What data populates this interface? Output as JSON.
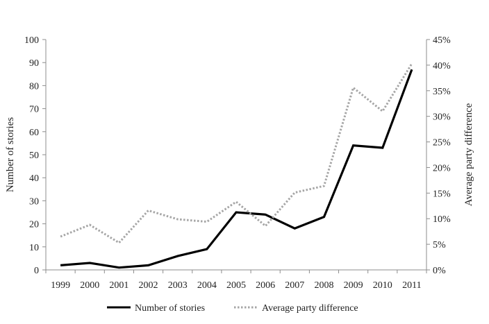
{
  "chart_data": {
    "type": "line",
    "x": [
      "1999",
      "2000",
      "2001",
      "2002",
      "2003",
      "2004",
      "2005",
      "2006",
      "2007",
      "2008",
      "2009",
      "2010",
      "2011"
    ],
    "series": [
      {
        "name": "Number of stories",
        "axis": "left",
        "style": "solid",
        "color": "#000000",
        "values": [
          2,
          3,
          1,
          2,
          6,
          9,
          25,
          24,
          18,
          23,
          54,
          53,
          87
        ]
      },
      {
        "name": "Average party difference",
        "axis": "right",
        "style": "dotted",
        "color": "#a6a6a6",
        "values": [
          6.5,
          8.8,
          5.3,
          11.6,
          9.9,
          9.4,
          13.3,
          8.6,
          15.1,
          16.4,
          35.6,
          31.0,
          40.3
        ]
      }
    ],
    "ylabel": "Number of stories",
    "y2label": "Average party difference",
    "ylim": [
      0,
      100
    ],
    "y2lim": [
      0,
      45
    ],
    "yticks": [
      "0",
      "10",
      "20",
      "30",
      "40",
      "50",
      "60",
      "70",
      "80",
      "90",
      "100"
    ],
    "y2ticks": [
      "0%",
      "5%",
      "10%",
      "15%",
      "20%",
      "25%",
      "30%",
      "35%",
      "40%",
      "45%"
    ],
    "legend_position": "bottom",
    "grid": false
  }
}
